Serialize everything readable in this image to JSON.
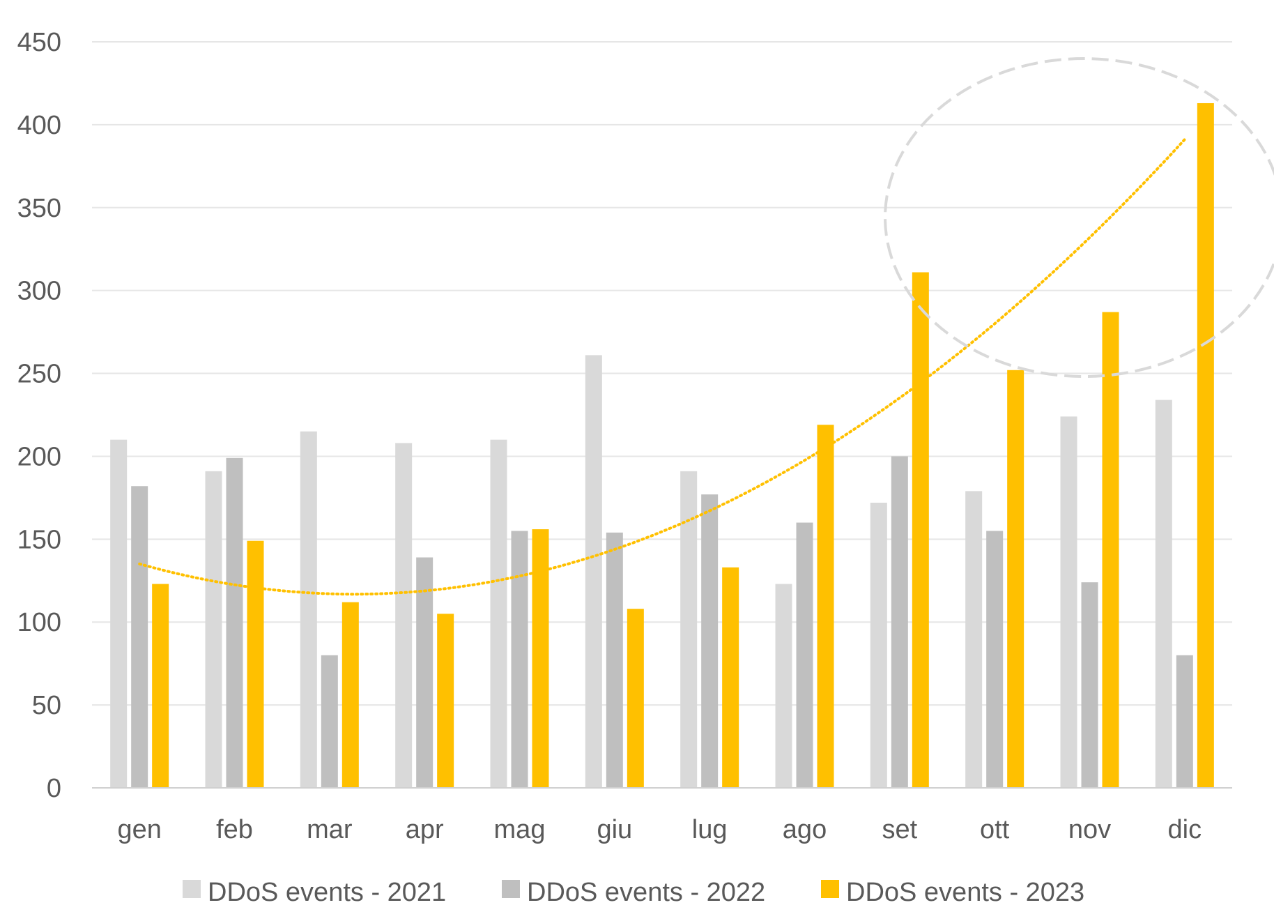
{
  "chart_data": {
    "type": "bar",
    "categories": [
      "gen",
      "feb",
      "mar",
      "apr",
      "mag",
      "giu",
      "lug",
      "ago",
      "set",
      "ott",
      "nov",
      "dic"
    ],
    "series": [
      {
        "name": "DDoS events - 2021",
        "color": "#d9d9d9",
        "values": [
          210,
          191,
          215,
          208,
          210,
          261,
          191,
          123,
          172,
          179,
          224,
          234
        ]
      },
      {
        "name": "DDoS events - 2022",
        "color": "#bfbfbf",
        "values": [
          182,
          199,
          80,
          139,
          155,
          154,
          177,
          160,
          200,
          155,
          124,
          80
        ]
      },
      {
        "name": "DDoS events - 2023",
        "color": "#ffc000",
        "values": [
          123,
          149,
          112,
          105,
          156,
          108,
          133,
          219,
          311,
          252,
          287,
          413
        ]
      }
    ],
    "trendline": {
      "series": "DDoS events - 2023",
      "kind": "polynomial",
      "style": "dotted",
      "color": "#ffc000"
    },
    "highlight": {
      "shape": "ellipse",
      "style": "dashed",
      "color": "#d9d9d9",
      "categories": [
        "set",
        "ott",
        "nov",
        "dic"
      ]
    },
    "ylim": [
      0,
      450
    ],
    "yticks": [
      0,
      50,
      100,
      150,
      200,
      250,
      300,
      350,
      400,
      450
    ],
    "grid": true,
    "legend_position": "bottom",
    "title": "",
    "xlabel": "",
    "ylabel": ""
  }
}
